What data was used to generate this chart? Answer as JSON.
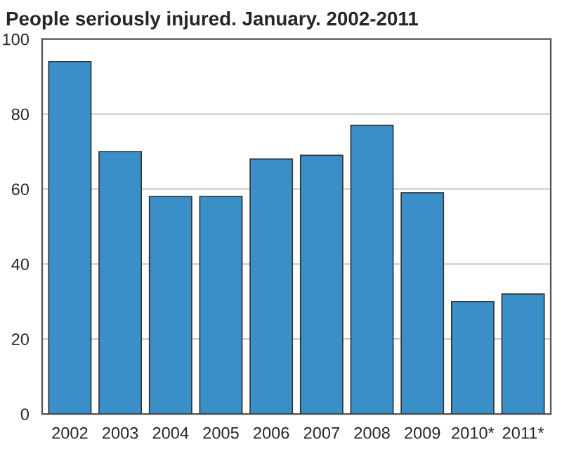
{
  "chart_data": {
    "type": "bar",
    "title": "People seriously injured. January. 2002-2011",
    "categories": [
      "2002",
      "2003",
      "2004",
      "2005",
      "2006",
      "2007",
      "2008",
      "2009",
      "2010*",
      "2011*"
    ],
    "values": [
      94,
      70,
      58,
      58,
      68,
      69,
      77,
      59,
      30,
      32
    ],
    "color": "#3a8fc8",
    "ylim": [
      0,
      100
    ],
    "yticks": [
      0,
      20,
      40,
      60,
      80,
      100
    ],
    "grid": "y"
  }
}
